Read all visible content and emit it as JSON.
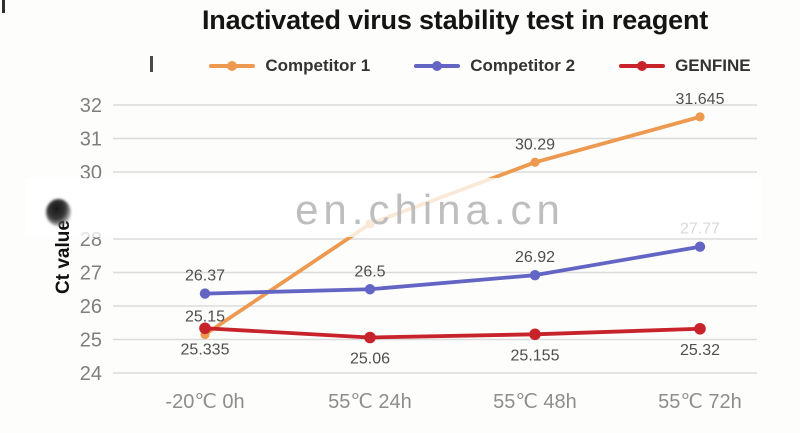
{
  "watermark": {
    "text": "en.china.cn"
  },
  "chart_data": {
    "type": "line",
    "title": "Inactivated virus stability test in reagent",
    "ylabel": "Ct value",
    "xlabel": "",
    "categories": [
      "-20℃ 0h",
      "55℃ 24h",
      "55℃ 48h",
      "55℃ 72h"
    ],
    "y_axis": {
      "range": [
        24,
        32
      ],
      "ticks_visible": [
        32,
        31,
        30,
        28,
        27,
        26,
        25,
        24
      ]
    },
    "grid": true,
    "legend_position": "top",
    "series": [
      {
        "name": "Competitor 1",
        "color": "#ED9A50",
        "label_side": "above",
        "values": [
          25.15,
          28.45,
          30.29,
          31.645
        ],
        "labels": [
          "25.15",
          "",
          "30.29",
          "31.645"
        ]
      },
      {
        "name": "Competitor 2",
        "color": "#6365C4",
        "label_side": "above",
        "values": [
          26.37,
          26.5,
          26.92,
          27.77
        ],
        "labels": [
          "26.37",
          "26.5",
          "26.92",
          "27.77"
        ]
      },
      {
        "name": "GENFINE",
        "color": "#C8232B",
        "label_side": "below",
        "values": [
          25.335,
          25.06,
          25.155,
          25.32
        ],
        "labels": [
          "25.335",
          "25.06",
          "25.155",
          "25.32"
        ]
      }
    ]
  },
  "colors": {
    "grid": "#DBDBDB",
    "tick_label": "#7E7E7E",
    "category_label": "#8D8D8D",
    "data_label": "#4F4F4F",
    "title": "#141414",
    "legend_text": "#333333",
    "watermark_text": "#B9B9B9",
    "background": "#FDFDFC"
  }
}
